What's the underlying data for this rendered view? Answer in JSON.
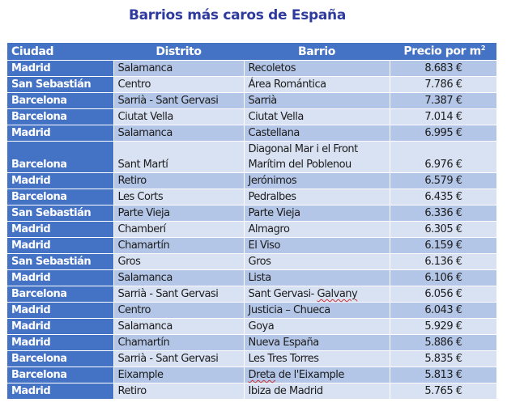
{
  "title": "Barrios más caros de España",
  "table": {
    "headers": [
      "Ciudad",
      "Distrito",
      "Barrio",
      "Precio por m",
      "2"
    ],
    "rows": [
      {
        "ciudad": "Madrid",
        "distrito": "Salamanca",
        "barrio": "Recoletos",
        "precio": "8.683 €"
      },
      {
        "ciudad": "San Sebastián",
        "distrito": "Centro",
        "barrio": "Área Romántica",
        "precio": "7.786 €"
      },
      {
        "ciudad": "Barcelona",
        "distrito": "Sarrià - Sant Gervasi",
        "barrio": "Sarrià",
        "precio": "7.387 €"
      },
      {
        "ciudad": "Barcelona",
        "distrito": "Ciutat Vella",
        "barrio": "Ciutat Vella",
        "precio": "7.014 €"
      },
      {
        "ciudad": "Madrid",
        "distrito": "Salamanca",
        "barrio": "Castellana",
        "precio": "6.995 €"
      },
      {
        "ciudad": "Barcelona",
        "distrito": "Sant Martí",
        "barrio_line1": "Diagonal Mar i el Front",
        "barrio_line2": "Marítim del Poblenou",
        "precio": "6.976 €"
      },
      {
        "ciudad": "Madrid",
        "distrito": "Retiro",
        "barrio": "Jerónimos",
        "precio": "6.579 €"
      },
      {
        "ciudad": "Barcelona",
        "distrito": "Les Corts",
        "barrio": "Pedralbes",
        "precio": "6.435 €"
      },
      {
        "ciudad": "San Sebastián",
        "distrito": "Parte Vieja",
        "barrio": "Parte Vieja",
        "precio": "6.336 €"
      },
      {
        "ciudad": "Madrid",
        "distrito": "Chamberí",
        "barrio": "Almagro",
        "precio": "6.305 €"
      },
      {
        "ciudad": "Madrid",
        "distrito": "Chamartín",
        "barrio": "El Viso",
        "precio": "6.159 €"
      },
      {
        "ciudad": "San Sebastián",
        "distrito": "Gros",
        "barrio": "Gros",
        "precio": "6.136 €"
      },
      {
        "ciudad": "Madrid",
        "distrito": "Salamanca",
        "barrio": "Lista",
        "precio": "6.106 €"
      },
      {
        "ciudad": "Barcelona",
        "distrito": "Sarrià - Sant Gervasi",
        "barrio_a": "Sant Gervasi- ",
        "barrio_b": "Galvany",
        "precio": "6.056 €"
      },
      {
        "ciudad": "Madrid",
        "distrito": "Centro",
        "barrio": "Justicia – Chueca",
        "precio": "6.043 €"
      },
      {
        "ciudad": "Madrid",
        "distrito": "Salamanca",
        "barrio": "Goya",
        "precio": "5.929 €"
      },
      {
        "ciudad": "Madrid",
        "distrito": "Chamartín",
        "barrio": "Nueva España",
        "precio": "5.886 €"
      },
      {
        "ciudad": "Barcelona",
        "distrito": "Sarrià - Sant Gervasi",
        "barrio": "Les Tres Torres",
        "precio": "5.835 €"
      },
      {
        "ciudad": "Barcelona",
        "distrito": "Eixample",
        "barrio_a": "Dreta",
        "barrio_b": " de l'Eixample",
        "precio": "5.813 €"
      },
      {
        "ciudad": "Madrid",
        "distrito": "Retiro",
        "barrio": "Ibiza de Madrid",
        "precio": "5.765 €"
      }
    ]
  }
}
